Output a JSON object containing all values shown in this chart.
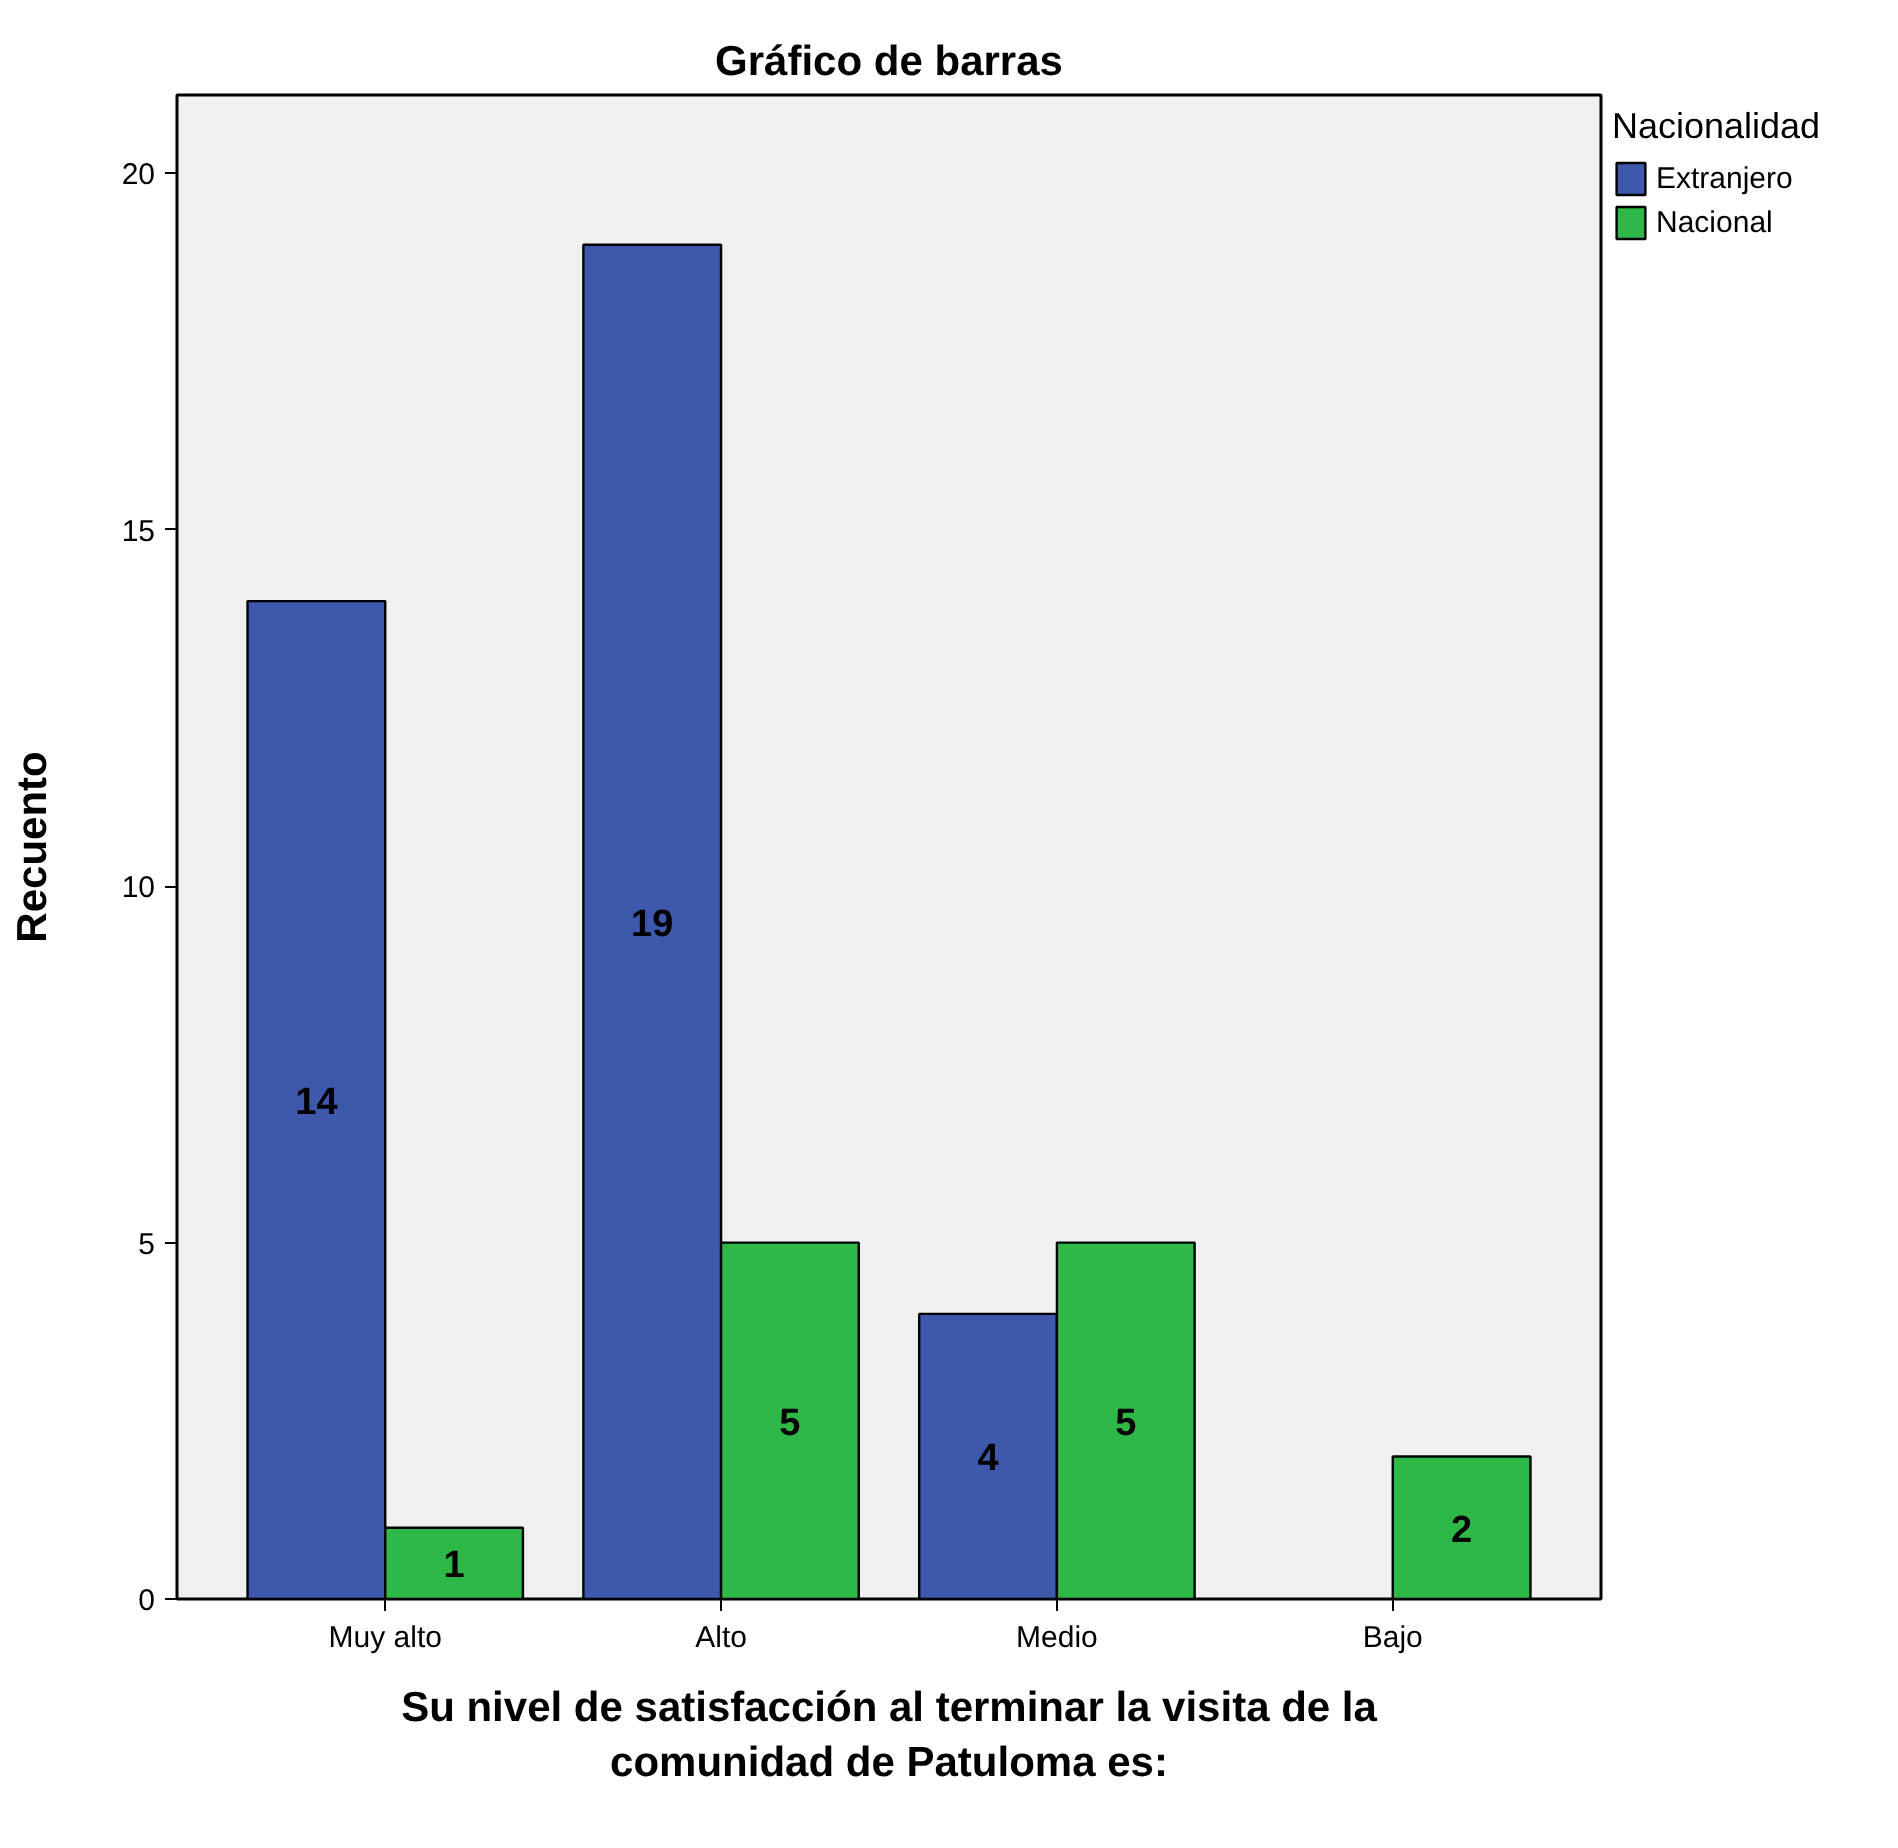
{
  "chart_data": {
    "type": "bar",
    "title": "Gráfico de barras",
    "xlabel": "Su nivel de satisfacción al terminar la visita de la comunidad de Patuloma es:",
    "ylabel": "Recuento",
    "legend_title": "Nacionalidad",
    "categories": [
      "Muy alto",
      "Alto",
      "Medio",
      "Bajo"
    ],
    "series": [
      {
        "name": "Extranjero",
        "color": "#3e58ac",
        "values": [
          14,
          19,
          4,
          null
        ]
      },
      {
        "name": "Nacional",
        "color": "#2eb848",
        "values": [
          1,
          5,
          5,
          2
        ]
      }
    ],
    "ylim": [
      0,
      21.1
    ],
    "yticks": [
      0,
      5,
      10,
      15,
      20
    ],
    "grid": false,
    "legend": "top right",
    "data_labels": true
  }
}
